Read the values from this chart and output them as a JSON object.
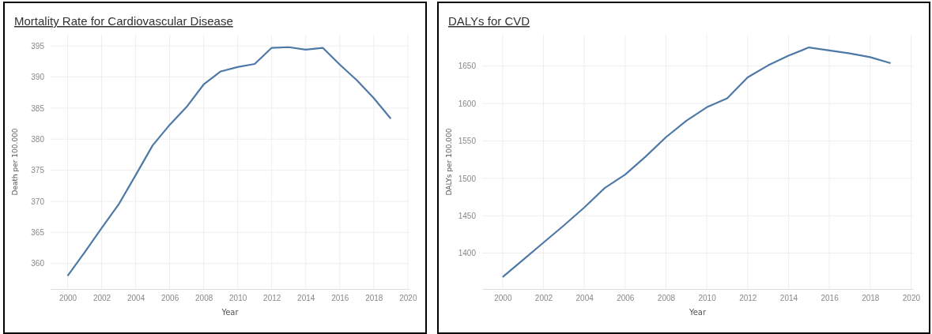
{
  "chart_data": [
    {
      "type": "line",
      "title": "Mortality Rate for Cardiovascular Disease",
      "xlabel": "Year",
      "ylabel": "Death per 100.000",
      "x": [
        2000,
        2001,
        2002,
        2003,
        2004,
        2005,
        2006,
        2007,
        2008,
        2009,
        2010,
        2011,
        2012,
        2013,
        2014,
        2015,
        2016,
        2017,
        2018,
        2019
      ],
      "series": [
        {
          "color": "#4e79a7",
          "values": [
            358.0,
            361.8,
            365.7,
            369.5,
            374.2,
            379.0,
            382.3,
            385.2,
            388.8,
            390.9,
            391.6,
            392.1,
            394.7,
            394.8,
            394.4,
            394.7,
            392.0,
            389.5,
            386.6,
            383.3
          ]
        }
      ],
      "xlim": [
        1999,
        2020.1
      ],
      "xticks": [
        2000,
        2002,
        2004,
        2006,
        2008,
        2010,
        2012,
        2014,
        2016,
        2018,
        2020
      ],
      "ylim": [
        355.9,
        396.8
      ],
      "yticks": [
        360,
        365,
        370,
        375,
        380,
        385,
        390,
        395
      ],
      "grid": true,
      "marker": "none",
      "line_style": "solid"
    },
    {
      "type": "line",
      "title": "DALYs for CVD",
      "xlabel": "Year",
      "ylabel": "DALYs per 100.000",
      "x": [
        2000,
        2001,
        2002,
        2003,
        2004,
        2005,
        2006,
        2007,
        2008,
        2009,
        2010,
        2011,
        2012,
        2013,
        2014,
        2015,
        2016,
        2017,
        2018,
        2019
      ],
      "series": [
        {
          "color": "#4e79a7",
          "values": [
            1368,
            1391,
            1414,
            1437,
            1461,
            1487,
            1505,
            1529,
            1555,
            1577,
            1595,
            1607,
            1635,
            1651,
            1664,
            1675,
            1671,
            1667,
            1662,
            1654
          ]
        }
      ],
      "xlim": [
        1999,
        2020.1
      ],
      "xticks": [
        2000,
        2002,
        2004,
        2006,
        2008,
        2010,
        2012,
        2014,
        2016,
        2018,
        2020
      ],
      "ylim": [
        1352,
        1692
      ],
      "yticks": [
        1400,
        1450,
        1500,
        1550,
        1600,
        1650
      ],
      "grid": true,
      "marker": "none",
      "line_style": "solid"
    }
  ]
}
